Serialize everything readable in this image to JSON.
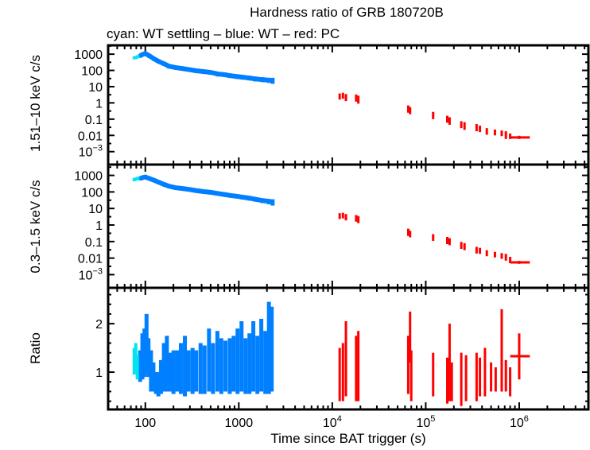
{
  "chart_data": {
    "type": "scatter",
    "title": "Hardness ratio of GRB 180720B",
    "subtitle": "cyan: WT settling – blue: WT – red: PC",
    "xlabel": "Time since BAT trigger (s)",
    "xscale": "log",
    "xlim": [
      40,
      5500000
    ],
    "xticks": [
      {
        "v": 100,
        "label": "100"
      },
      {
        "v": 1000,
        "label": "1000"
      },
      {
        "v": 10000,
        "label": "10",
        "sup": "4"
      },
      {
        "v": 100000,
        "label": "10",
        "sup": "5"
      },
      {
        "v": 1000000,
        "label": "10",
        "sup": "6"
      }
    ],
    "colors": {
      "wt_settling": "#00e5ee",
      "wt": "#0080ff",
      "pc": "#ff0000"
    },
    "panels": [
      {
        "ylabel": "1.51–10 keV c/s",
        "yscale": "log",
        "ylim": [
          0.00016,
          3500
        ],
        "yticks": [
          {
            "v": 1000,
            "label": "1000"
          },
          {
            "v": 100,
            "label": "100"
          },
          {
            "v": 10,
            "label": "10"
          },
          {
            "v": 1,
            "label": "1"
          },
          {
            "v": 0.1,
            "label": "0.1"
          },
          {
            "v": 0.01,
            "label": "0.01"
          },
          {
            "v": 0.001,
            "label": "10",
            "sup": "−3"
          }
        ],
        "series": {
          "wt_settling": [
            [
              76,
              600,
              480,
              750
            ],
            [
              80,
              620,
              500,
              780
            ],
            [
              83,
              700,
              560,
              870
            ]
          ],
          "wt": [
            [
              88,
              800,
              600,
              1000
            ],
            [
              95,
              1000,
              800,
              1300
            ],
            [
              100,
              1100,
              850,
              1400
            ],
            [
              110,
              800,
              600,
              1000
            ],
            [
              125,
              500,
              380,
              650
            ],
            [
              140,
              350,
              260,
              450
            ],
            [
              160,
              250,
              190,
              330
            ],
            [
              180,
              180,
              130,
              240
            ],
            [
              210,
              150,
              110,
              200
            ],
            [
              250,
              130,
              95,
              170
            ],
            [
              300,
              110,
              80,
              140
            ],
            [
              350,
              95,
              70,
              125
            ],
            [
              420,
              85,
              60,
              110
            ],
            [
              500,
              75,
              55,
              100
            ],
            [
              600,
              60,
              42,
              80
            ],
            [
              700,
              55,
              40,
              75
            ],
            [
              800,
              48,
              34,
              65
            ],
            [
              950,
              42,
              30,
              58
            ],
            [
              1100,
              38,
              27,
              52
            ],
            [
              1300,
              34,
              24,
              46
            ],
            [
              1500,
              30,
              21,
              42
            ],
            [
              1800,
              27,
              19,
              38
            ],
            [
              2100,
              25,
              17,
              35
            ],
            [
              2300,
              24,
              15,
              35
            ]
          ],
          "pc": [
            [
              12000,
              2.5,
              1.6,
              3.8
            ],
            [
              13000,
              2.8,
              1.8,
              4.2
            ],
            [
              14000,
              2.2,
              1.3,
              3.5
            ],
            [
              18000,
              2.0,
              1.2,
              3.3
            ],
            [
              19000,
              1.6,
              0.9,
              2.8
            ],
            [
              65000,
              0.45,
              0.25,
              0.7
            ],
            [
              68000,
              0.35,
              0.2,
              0.55
            ],
            [
              120000,
              0.17,
              0.1,
              0.28
            ],
            [
              170000,
              0.1,
              0.06,
              0.16
            ],
            [
              180000,
              0.08,
              0.045,
              0.13
            ],
            [
              240000,
              0.045,
              0.028,
              0.075
            ],
            [
              260000,
              0.04,
              0.022,
              0.065
            ],
            [
              350000,
              0.03,
              0.018,
              0.05
            ],
            [
              380000,
              0.025,
              0.016,
              0.04
            ],
            [
              450000,
              0.018,
              0.011,
              0.028
            ],
            [
              550000,
              0.015,
              0.01,
              0.023
            ],
            [
              650000,
              0.013,
              0.009,
              0.02
            ],
            [
              720000,
              0.011,
              0.006,
              0.018
            ],
            [
              800000,
              0.009,
              0.006,
              0.013
            ],
            [
              1000000,
              0.0075,
              0.006,
              0.0095,
              800000,
              1300000
            ]
          ]
        }
      },
      {
        "ylabel": "0.3–1.5 keV c/s",
        "yscale": "log",
        "ylim": [
          0.00016,
          4500
        ],
        "yticks": [
          {
            "v": 1000,
            "label": "1000"
          },
          {
            "v": 100,
            "label": "100"
          },
          {
            "v": 10,
            "label": "10"
          },
          {
            "v": 1,
            "label": "1"
          },
          {
            "v": 0.1,
            "label": "0.1"
          },
          {
            "v": 0.01,
            "label": "0.01"
          },
          {
            "v": 0.001,
            "label": "10",
            "sup": "−3"
          }
        ],
        "series": {
          "wt_settling": [
            [
              76,
              550,
              440,
              700
            ],
            [
              80,
              600,
              480,
              760
            ],
            [
              83,
              650,
              520,
              820
            ]
          ],
          "wt": [
            [
              88,
              650,
              500,
              850
            ],
            [
              95,
              750,
              580,
              950
            ],
            [
              100,
              800,
              620,
              1000
            ],
            [
              110,
              650,
              500,
              850
            ],
            [
              125,
              500,
              380,
              650
            ],
            [
              140,
              380,
              290,
              500
            ],
            [
              160,
              280,
              210,
              370
            ],
            [
              180,
              220,
              165,
              290
            ],
            [
              210,
              180,
              135,
              240
            ],
            [
              250,
              160,
              120,
              210
            ],
            [
              300,
              140,
              105,
              185
            ],
            [
              350,
              120,
              90,
              160
            ],
            [
              420,
              105,
              78,
              140
            ],
            [
              500,
              95,
              70,
              125
            ],
            [
              600,
              80,
              60,
              105
            ],
            [
              700,
              70,
              52,
              95
            ],
            [
              800,
              62,
              46,
              82
            ],
            [
              950,
              55,
              40,
              72
            ],
            [
              1100,
              48,
              35,
              63
            ],
            [
              1300,
              42,
              30,
              56
            ],
            [
              1500,
              36,
              26,
              48
            ],
            [
              1800,
              30,
              21,
              40
            ],
            [
              2100,
              27,
              18,
              37
            ],
            [
              2300,
              25,
              15,
              36
            ]
          ],
          "pc": [
            [
              12000,
              3.5,
              2.3,
              5.2
            ],
            [
              13000,
              3.8,
              2.5,
              5.5
            ],
            [
              14000,
              3.0,
              1.9,
              4.6
            ],
            [
              18000,
              2.6,
              1.6,
              4.0
            ],
            [
              19000,
              2.2,
              1.3,
              3.5
            ],
            [
              65000,
              0.4,
              0.22,
              0.6
            ],
            [
              68000,
              0.3,
              0.18,
              0.45
            ],
            [
              120000,
              0.18,
              0.11,
              0.28
            ],
            [
              170000,
              0.12,
              0.07,
              0.19
            ],
            [
              180000,
              0.1,
              0.06,
              0.16
            ],
            [
              240000,
              0.06,
              0.036,
              0.095
            ],
            [
              260000,
              0.05,
              0.03,
              0.08
            ],
            [
              350000,
              0.03,
              0.019,
              0.048
            ],
            [
              380000,
              0.028,
              0.018,
              0.042
            ],
            [
              450000,
              0.02,
              0.013,
              0.03
            ],
            [
              550000,
              0.016,
              0.011,
              0.024
            ],
            [
              650000,
              0.013,
              0.009,
              0.02
            ],
            [
              720000,
              0.012,
              0.007,
              0.018
            ],
            [
              800000,
              0.008,
              0.005,
              0.012
            ],
            [
              1000000,
              0.0055,
              0.0045,
              0.0068,
              800000,
              1300000
            ]
          ]
        }
      },
      {
        "ylabel": "Ratio",
        "yscale": "linear",
        "ylim": [
          0.23,
          2.74
        ],
        "yticks": [
          {
            "v": 1,
            "label": "1"
          },
          {
            "v": 2,
            "label": "2"
          }
        ],
        "yminor": 0.2,
        "series": {
          "wt_settling": [
            [
              76,
              1.2,
              0.95,
              1.5
            ],
            [
              79,
              1.3,
              1.0,
              1.6
            ],
            [
              82,
              1.1,
              0.85,
              1.35
            ]
          ],
          "wt": [
            [
              88,
              1.1,
              0.8,
              1.45
            ],
            [
              93,
              1.2,
              0.85,
              1.8
            ],
            [
              98,
              1.3,
              0.9,
              1.9
            ],
            [
              103,
              1.5,
              1.0,
              2.2
            ],
            [
              108,
              1.3,
              0.9,
              1.7
            ],
            [
              115,
              1.1,
              0.6,
              1.45
            ],
            [
              122,
              0.9,
              0.6,
              1.2
            ],
            [
              130,
              0.75,
              0.55,
              1.0
            ],
            [
              138,
              0.8,
              0.5,
              1.0
            ],
            [
              147,
              0.9,
              0.55,
              1.25
            ],
            [
              158,
              1.0,
              0.6,
              1.6
            ],
            [
              170,
              1.05,
              0.6,
              1.75
            ],
            [
              185,
              1.0,
              0.6,
              1.4
            ],
            [
              200,
              1.05,
              0.55,
              1.45
            ],
            [
              220,
              1.0,
              0.6,
              1.45
            ],
            [
              240,
              1.05,
              0.55,
              1.6
            ],
            [
              265,
              1.0,
              0.5,
              1.75
            ],
            [
              290,
              1.0,
              0.6,
              1.45
            ],
            [
              320,
              1.05,
              0.55,
              1.5
            ],
            [
              350,
              1.0,
              0.6,
              1.45
            ],
            [
              390,
              1.05,
              0.55,
              1.6
            ],
            [
              430,
              1.0,
              0.55,
              1.55
            ],
            [
              480,
              1.1,
              0.6,
              1.9
            ],
            [
              530,
              1.05,
              0.55,
              1.6
            ],
            [
              590,
              1.0,
              0.6,
              1.85
            ],
            [
              650,
              1.1,
              0.55,
              1.7
            ],
            [
              720,
              1.05,
              0.6,
              1.65
            ],
            [
              800,
              1.1,
              0.55,
              1.7
            ],
            [
              880,
              1.0,
              0.6,
              1.75
            ],
            [
              970,
              1.1,
              0.55,
              1.9
            ],
            [
              1070,
              1.1,
              0.6,
              2.05
            ],
            [
              1180,
              1.0,
              0.55,
              1.7
            ],
            [
              1300,
              1.1,
              0.55,
              1.8
            ],
            [
              1430,
              1.1,
              0.6,
              2.05
            ],
            [
              1580,
              1.05,
              0.55,
              1.75
            ],
            [
              1740,
              1.15,
              0.6,
              2.1
            ],
            [
              1920,
              1.1,
              0.55,
              1.85
            ],
            [
              2100,
              1.2,
              0.55,
              2.45
            ],
            [
              2250,
              1.2,
              0.6,
              2.35
            ]
          ],
          "pc": [
            [
              12000,
              0.9,
              0.4,
              1.5
            ],
            [
              13000,
              1.0,
              0.4,
              1.6
            ],
            [
              14000,
              1.1,
              0.5,
              2.05
            ],
            [
              18000,
              0.95,
              0.4,
              1.75
            ],
            [
              19000,
              1.0,
              0.4,
              1.85
            ],
            [
              65000,
              1.2,
              0.55,
              1.75
            ],
            [
              68000,
              1.73,
              1.2,
              2.25
            ],
            [
              70000,
              1.0,
              0.4,
              1.45
            ],
            [
              120000,
              0.9,
              0.5,
              1.4
            ],
            [
              170000,
              0.9,
              0.35,
              1.3
            ],
            [
              180000,
              1.3,
              0.4,
              2.0
            ],
            [
              190000,
              0.8,
              0.4,
              1.2
            ],
            [
              240000,
              0.8,
              0.3,
              1.4
            ],
            [
              270000,
              0.9,
              0.4,
              1.35
            ],
            [
              350000,
              0.9,
              0.4,
              1.4
            ],
            [
              380000,
              1.0,
              0.5,
              1.3
            ],
            [
              430000,
              0.9,
              0.5,
              1.5
            ],
            [
              500000,
              1.0,
              0.6,
              1.2
            ],
            [
              560000,
              0.9,
              0.6,
              1.1
            ],
            [
              650000,
              1.2,
              0.6,
              2.3
            ],
            [
              720000,
              1.0,
              0.6,
              1.25
            ],
            [
              800000,
              0.8,
              0.5,
              1.1
            ],
            [
              1000000,
              1.33,
              0.85,
              1.8,
              800000,
              1300000
            ]
          ]
        }
      }
    ]
  }
}
